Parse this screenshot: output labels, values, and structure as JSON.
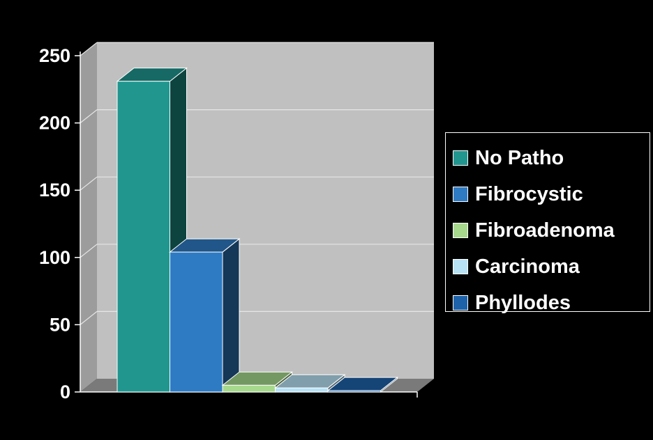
{
  "chart_data": {
    "type": "bar",
    "style": "3d-column",
    "categories": [
      "No Patho",
      "Fibrocystic",
      "Fibroadenoma",
      "Carcinoma",
      "Phyllodes"
    ],
    "values": [
      231,
      104,
      5,
      3,
      1
    ],
    "ylim": [
      0,
      250
    ],
    "yticks": [
      "0",
      "50",
      "100",
      "150",
      "200",
      "250"
    ],
    "title": "",
    "xlabel": "",
    "ylabel": "",
    "grid": true,
    "legend_position": "right",
    "colors": [
      "#20968F",
      "#2E7BC4",
      "#A6D98C",
      "#B7E2F5",
      "#1E63AA"
    ],
    "legend": [
      "No Patho",
      "Fibrocystic",
      "Fibroadenoma",
      "Carcinoma",
      "Phyllodes"
    ]
  }
}
